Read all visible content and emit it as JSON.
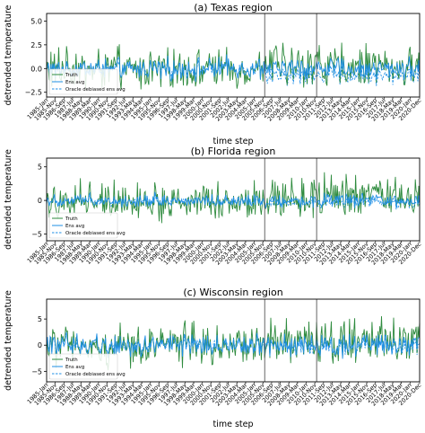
{
  "chart_data": [
    {
      "type": "line",
      "title": "(a) Texas region",
      "xlabel": "time step",
      "ylabel": "detrended temperature",
      "ylim": [
        -3.0,
        5.8
      ],
      "yticks": [
        -2.5,
        0.0,
        2.5,
        5.0
      ],
      "ytick_labels": [
        "−2.5",
        "0.0",
        "2.5",
        "5.0"
      ],
      "x_range": [
        "1985-Jan",
        "2020-Dec"
      ],
      "vertical_lines": [
        "2006-Jan",
        "2011-Jan"
      ],
      "legend": {
        "position": "lower-left",
        "entries": [
          "Truth",
          "Ens avg",
          "Oracle debiased ens avg"
        ]
      },
      "series": [
        {
          "name": "Truth",
          "color": "#2e8b3e",
          "style": "solid",
          "amplitude": 1.6,
          "peak": 5.2,
          "trough": -2.2
        },
        {
          "name": "Ens avg",
          "color": "#1f8fe6",
          "style": "solid",
          "amplitude": 1.1,
          "peak": 4.0,
          "trough": -2.1
        },
        {
          "name": "Oracle debiased ens avg",
          "color": "#1f8fe6",
          "style": "dashed",
          "amplitude": 1.0,
          "peak": 3.5,
          "trough": -2.3
        }
      ],
      "late_period_offset": -0.8
    },
    {
      "type": "line",
      "title": "(b) Florida region",
      "xlabel": "",
      "ylabel": "detrended temperature",
      "ylim": [
        -6.0,
        6.3
      ],
      "yticks": [
        -5,
        0,
        5
      ],
      "ytick_labels": [
        "−5",
        "0",
        "5"
      ],
      "x_range": [
        "1985-Jan",
        "2020-Dec"
      ],
      "vertical_lines": [
        "2006-Jan",
        "2011-Jan"
      ],
      "legend": {
        "position": "lower-left",
        "entries": [
          "Truth",
          "Ens avg",
          "Oracle debiased ens avg"
        ]
      },
      "series": [
        {
          "name": "Truth",
          "color": "#2e8b3e",
          "style": "solid",
          "amplitude": 2.2,
          "peak": 5.8,
          "trough": -5.5
        },
        {
          "name": "Ens avg",
          "color": "#1f8fe6",
          "style": "solid",
          "amplitude": 1.0,
          "peak": 2.8,
          "trough": -4.2
        },
        {
          "name": "Oracle debiased ens avg",
          "color": "#1f8fe6",
          "style": "dashed",
          "amplitude": 0.9,
          "peak": 2.2,
          "trough": -2.6
        }
      ],
      "late_period_offset": -0.5
    },
    {
      "type": "line",
      "title": "(c) Wisconsin region",
      "xlabel": "time step",
      "ylabel": "detrended temperature",
      "ylim": [
        -7.0,
        8.8
      ],
      "yticks": [
        -5,
        0,
        5
      ],
      "ytick_labels": [
        "−5",
        "0",
        "5"
      ],
      "x_range": [
        "1985-Jan",
        "2020-Dec"
      ],
      "vertical_lines": [
        "2006-Jan",
        "2011-Jan"
      ],
      "legend": {
        "position": "lower-left",
        "entries": [
          "Truth",
          "Ens avg",
          "Oracle debiased ens avg"
        ]
      },
      "series": [
        {
          "name": "Truth",
          "color": "#2e8b3e",
          "style": "solid",
          "amplitude": 3.0,
          "peak": 8.0,
          "trough": -6.8
        },
        {
          "name": "Ens avg",
          "color": "#1f8fe6",
          "style": "solid",
          "amplitude": 2.1,
          "peak": 6.0,
          "trough": -5.2
        },
        {
          "name": "Oracle debiased ens avg",
          "color": "#1f8fe6",
          "style": "dashed",
          "amplitude": 2.0,
          "peak": 5.5,
          "trough": -4.8
        }
      ],
      "late_period_offset": -0.3
    }
  ],
  "x_tick_labels": [
    "1985-Jan",
    "1985-Nov",
    "1986-Sep",
    "1987-Jul",
    "1988-May",
    "1989-Mar",
    "1990-Jan",
    "1990-Nov",
    "1991-Sep",
    "1992-Jul",
    "1993-May",
    "1994-Mar",
    "1995-Jan",
    "1995-Nov",
    "1996-Sep",
    "1997-Jul",
    "1998-May",
    "1999-Mar",
    "2000-Jan",
    "2000-Nov",
    "2001-Sep",
    "2002-Jul",
    "2003-May",
    "2004-Mar",
    "2005-Jan",
    "2005-Nov",
    "2006-Sep",
    "2007-Jul",
    "2008-May",
    "2009-Mar",
    "2010-Jan",
    "2010-Nov",
    "2011-Sep",
    "2012-Jul",
    "2013-May",
    "2014-Mar",
    "2015-Jan",
    "2015-Nov",
    "2016-Sep",
    "2017-Jul",
    "2018-May",
    "2019-Mar",
    "2020-Jan",
    "2020-Dec"
  ]
}
